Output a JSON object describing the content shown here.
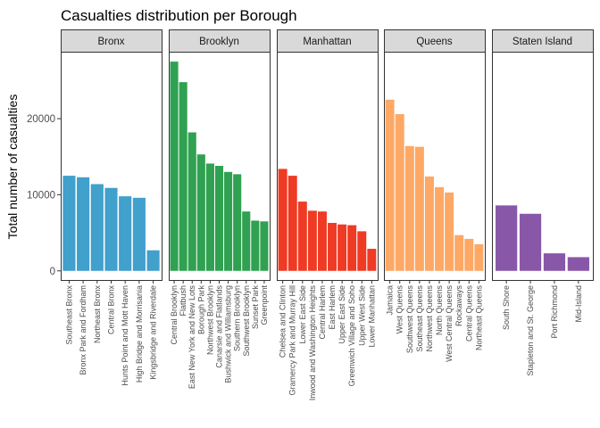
{
  "chart_data": {
    "type": "bar",
    "title": "Casualties distribution per Borough",
    "xlabel": "",
    "ylabel": "Total number of casualties",
    "ylim": [
      -1200,
      28800
    ],
    "yticks": [
      0,
      10000,
      20000
    ],
    "ytick_labels": [
      "0",
      "10000",
      "20000"
    ],
    "grid": false,
    "facets": [
      {
        "name": "Bronx",
        "color": "#41a0cc",
        "categories": [
          "Southeast Bronx",
          "Bronx Park and Fordham",
          "Northeast Bronx",
          "Central Bronx",
          "Hunts Point and Mott Haven",
          "High Bridge and Morrisania",
          "Kingsbridge and Riverdale"
        ],
        "values": [
          12500,
          12300,
          11400,
          10900,
          9800,
          9600,
          2700
        ]
      },
      {
        "name": "Brooklyn",
        "color": "#2fa151",
        "categories": [
          "Central Brooklyn",
          "Flatbush",
          "East New York and New Lots",
          "Borough Park",
          "Northwest Brooklyn",
          "Canarsie and Flatlands",
          "Bushwick and Williamsburg",
          "Southern Brooklyn",
          "Southwest Brooklyn",
          "Sunset Park",
          "Greenpoint"
        ],
        "values": [
          27500,
          24800,
          18200,
          15300,
          14100,
          13800,
          13000,
          12700,
          7800,
          6600,
          6500
        ]
      },
      {
        "name": "Manhattan",
        "color": "#ef3a24",
        "categories": [
          "Chelsea and Clinton",
          "Gramercy Park and Murray Hill",
          "Lower East Side",
          "Inwood and Washington Heights",
          "Central Harlem",
          "East Harlem",
          "Upper East Side",
          "Greenwich Village and Soho",
          "Upper West Side",
          "Lower Manhattan"
        ],
        "values": [
          13400,
          12500,
          9100,
          7900,
          7800,
          6300,
          6100,
          6000,
          5200,
          2900
        ]
      },
      {
        "name": "Queens",
        "color": "#fda865",
        "categories": [
          "Jamaica",
          "West Queens",
          "Southwest Queens",
          "Southeast Queens",
          "Northwest Queens",
          "North Queens",
          "West Central Queens",
          "Rockaways",
          "Central Queens",
          "Northeast Queens"
        ],
        "values": [
          22500,
          20600,
          16400,
          16300,
          12400,
          11000,
          10300,
          4700,
          4200,
          3500
        ]
      },
      {
        "name": "Staten Island",
        "color": "#8957a7",
        "categories": [
          "South Shore",
          "Stapleton and St. George",
          "Port Richmond",
          "Mid-Island"
        ],
        "values": [
          8600,
          7500,
          2300,
          1800
        ]
      }
    ]
  }
}
